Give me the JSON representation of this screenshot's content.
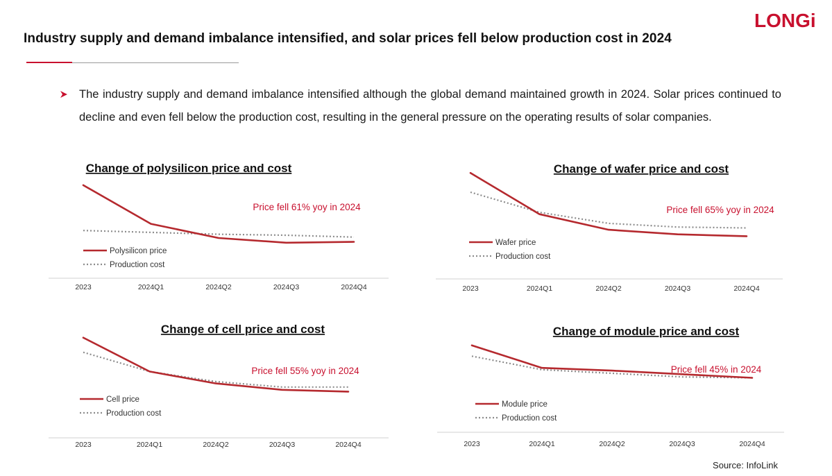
{
  "brand": {
    "logo_text": "LONGi",
    "accent": "#c8102e"
  },
  "header": {
    "title": "Industry supply and demand imbalance intensified, and solar prices fell below production cost in 2024"
  },
  "bullet": {
    "icon": "arrow-bullet-icon",
    "text": "The industry supply and demand imbalance intensified although the global demand maintained growth in 2024. Solar prices continued to decline and even fell below the production cost, resulting in the general pressure on the operating results of solar companies."
  },
  "source": "Source: InfoLink",
  "chart_data": [
    {
      "type": "line",
      "title": "Change of polysilicon price and cost",
      "annotation": "Price fell 61% yoy in 2024",
      "categories": [
        "2023",
        "2024Q1",
        "2024Q2",
        "2024Q3",
        "2024Q4"
      ],
      "ylim": [
        0,
        100
      ],
      "series": [
        {
          "name": "Polysilicon price",
          "style": "solid",
          "color": "#b5292e",
          "values": [
            92,
            51,
            36,
            31,
            32
          ]
        },
        {
          "name": "Production cost",
          "style": "dotted",
          "color": "#8c8c8c",
          "values": [
            44,
            42,
            40,
            39,
            37
          ]
        }
      ]
    },
    {
      "type": "line",
      "title": "Change of wafer price and cost",
      "annotation": "Price fell 65% yoy in 2024",
      "categories": [
        "2023",
        "2024Q1",
        "2024Q2",
        "2024Q3",
        "2024Q4"
      ],
      "ylim": [
        0,
        100
      ],
      "series": [
        {
          "name": "Wafer price",
          "style": "solid",
          "color": "#b5292e",
          "values": [
            96,
            51,
            34,
            29,
            27
          ]
        },
        {
          "name": "Production cost",
          "style": "dotted",
          "color": "#8c8c8c",
          "values": [
            75,
            53,
            41,
            37,
            36
          ]
        }
      ]
    },
    {
      "type": "line",
      "title": "Change of cell price and cost",
      "annotation": "Price fell 55% yoy in 2024",
      "categories": [
        "2023",
        "2024Q1",
        "2024Q2",
        "2024Q3",
        "2024Q4"
      ],
      "ylim": [
        0,
        100
      ],
      "series": [
        {
          "name": "Cell price",
          "style": "solid",
          "color": "#b5292e",
          "values": [
            92,
            55,
            42,
            35,
            33
          ]
        },
        {
          "name": "Production cost",
          "style": "dotted",
          "color": "#8c8c8c",
          "values": [
            76,
            55,
            44,
            38,
            38
          ]
        }
      ]
    },
    {
      "type": "line",
      "title": "Change of module price and cost",
      "annotation": "Price fell 45% in 2024",
      "categories": [
        "2023",
        "2024Q1",
        "2024Q2",
        "2024Q3",
        "2024Q4"
      ],
      "ylim": [
        0,
        100
      ],
      "series": [
        {
          "name": "Module price",
          "style": "solid",
          "color": "#b5292e",
          "values": [
            81,
            56,
            53,
            49,
            45
          ]
        },
        {
          "name": "Production cost",
          "style": "dotted",
          "color": "#8c8c8c",
          "values": [
            69,
            54,
            50,
            46,
            45
          ]
        }
      ]
    }
  ]
}
